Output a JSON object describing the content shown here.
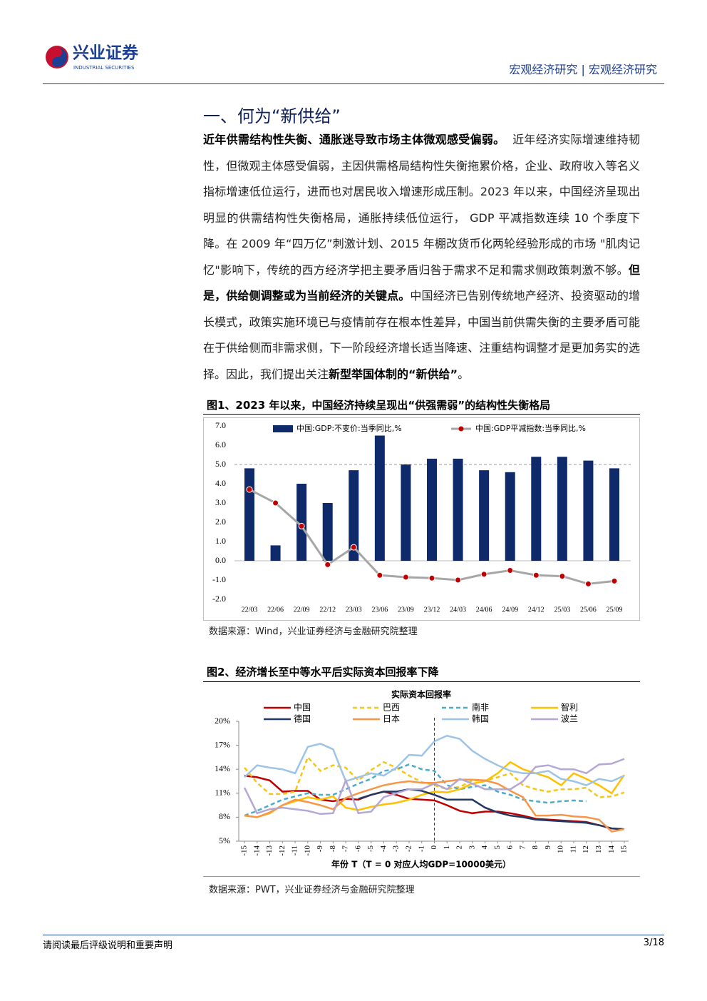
{
  "header": {
    "logo_name": "兴业证券",
    "logo_en": "INDUSTRIAL SECURITIES",
    "right": "宏观经济研究 | 宏观经济研究"
  },
  "heading": "一、何为“新供给”",
  "paragraph": {
    "runs": [
      {
        "text": "近年供需结构性失衡、通胀迷导致市场主体微观感受偏弱。",
        "bold": true
      },
      {
        "text": "  近年经济实际增速维持韧性，但微观主体感受偏弱，主因供需格局结构性失衡拖累价格，企业、政府收入等名义指标增速低位运行，进而也对居民收入增速形成压制。2023 年以来，中国经济呈现出明显的供需结构性失衡格局，通胀持续低位运行， GDP 平减指数连续 10 个季度下降。在 2009 年“四万亿”刺激计划、2015 年棚改货币化两轮经验形成的市场 \"肌肉记忆\"影响下，传统的西方经济学把主要矛盾归咎于需求不足和需求侧政策刺激不够。",
        "bold": false
      },
      {
        "text": "但是，供给侧调整或为当前经济的关键点。",
        "bold": true
      },
      {
        "text": "中国经济已告别传统地产经济、投资驱动的增长模式，政策实施环境已与疫情前存在根本性差异，中国当前供需失衡的主要矛盾可能在于供给侧而非需求侧，下一阶段经济增长适当降速、注重结构调整才是更加务实的选择。因此，我们提出关注",
        "bold": false
      },
      {
        "text": "新型举国体制的“新供给”",
        "bold": true
      },
      {
        "text": "。",
        "bold": false
      }
    ]
  },
  "chart_data": [
    {
      "type": "bar_line",
      "title": "图1、2023 年以来，中国经济持续呈现出“供强需弱”的结构性失衡格局",
      "categories": [
        "22/03",
        "22/06",
        "22/09",
        "22/12",
        "23/03",
        "23/06",
        "23/09",
        "23/12",
        "24/03",
        "24/06",
        "24/09",
        "24/12",
        "25/03",
        "25/06",
        "25/09"
      ],
      "series": [
        {
          "name": "中国:GDP:不变价:当季同比,%",
          "type": "bar",
          "color": "#0e2a6b",
          "values": [
            4.8,
            0.8,
            4.0,
            3.0,
            4.7,
            6.5,
            5.0,
            5.3,
            5.3,
            4.7,
            4.6,
            5.4,
            5.4,
            5.2,
            4.8
          ]
        },
        {
          "name": "中国:GDP平减指数:当季同比,%",
          "type": "line",
          "color": "#a6a6a6",
          "marker_color": "#c00000",
          "values": [
            3.7,
            3.0,
            1.8,
            -0.2,
            0.7,
            -0.75,
            -0.85,
            -0.9,
            -1.0,
            -0.7,
            -0.5,
            -0.75,
            -0.8,
            -1.2,
            -1.05
          ]
        }
      ],
      "ylim": [
        -2,
        7
      ],
      "yticks": [
        {
          "value": -2,
          "label": "-2.0"
        },
        {
          "value": -1,
          "label": "-1.0"
        },
        {
          "value": 0,
          "label": "0.0"
        },
        {
          "value": 1,
          "label": "1.0"
        },
        {
          "value": 2,
          "label": "2.0"
        },
        {
          "value": 3,
          "label": "3.0"
        },
        {
          "value": 4,
          "label": "4.0"
        },
        {
          "value": 5,
          "label": "5.0"
        },
        {
          "value": 6,
          "label": "6.0"
        },
        {
          "value": 7,
          "label": "7.0"
        }
      ],
      "reference_line": 5,
      "source": "数据来源：Wind，兴业证券经济与金融研究院整理"
    },
    {
      "type": "line",
      "title": "图2、经济增长至中等水平后实际资本回报率下降",
      "subtitle": "实际资本回报率",
      "x_label": "年份 T（T = 0 对应人均GDP=10000美元）",
      "x": [
        -15,
        -14,
        -13,
        -12,
        -11,
        -10,
        -9,
        -8,
        -7,
        -6,
        -5,
        -4,
        -3,
        -2,
        -1,
        0,
        1,
        2,
        3,
        4,
        5,
        6,
        7,
        8,
        9,
        10,
        11,
        12,
        13,
        14,
        15
      ],
      "series": [
        {
          "name": "中国",
          "color": "#c00000",
          "dash": false,
          "values": [
            13.2,
            13.0,
            12.6,
            11.2,
            11.3,
            11.3,
            10.2,
            10.0,
            10.3,
            10.2,
            10.8,
            11.2,
            10.8,
            10.3,
            10.2,
            10.1,
            9.5,
            8.8,
            8.5,
            8.7,
            8.7,
            8.5,
            8.2,
            7.8,
            7.7,
            7.6,
            7.5,
            7.4,
            7.0,
            6.6,
            6.5
          ]
        },
        {
          "name": "巴西",
          "color": "#f5c518",
          "dash": true,
          "values": [
            14.2,
            12.3,
            10.9,
            10.9,
            11.2,
            15.5,
            13.8,
            14.5,
            14.2,
            12.6,
            13.9,
            14.9,
            14.2,
            13.2,
            12.4,
            12.0,
            11.5,
            11.8,
            12.6,
            12.6,
            13.0,
            13.5,
            12.0,
            11.5,
            11.2,
            11.5,
            11.5,
            11.7,
            10.5,
            10.6,
            11.1
          ]
        },
        {
          "name": "南非",
          "color": "#4bacc6",
          "dash": true,
          "values": [
            8.2,
            8.8,
            9.5,
            10.2,
            10.6,
            11.0,
            10.8,
            10.8,
            11.5,
            12.2,
            12.8,
            13.8,
            14.0,
            14.6,
            14.0,
            13.8,
            12.0,
            11.5,
            11.8,
            12.0,
            11.2,
            10.8,
            10.2,
            10.0,
            9.8,
            10.0,
            10.1,
            10.0,
            null,
            null,
            null
          ]
        },
        {
          "name": "智利",
          "color": "#ffc000",
          "dash": false,
          "values": [
            8.2,
            8.0,
            8.5,
            9.5,
            10.0,
            10.5,
            10.2,
            10.6,
            9.2,
            8.9,
            9.3,
            9.6,
            9.8,
            10.2,
            10.8,
            11.2,
            11.1,
            11.5,
            12.2,
            12.5,
            13.5,
            14.9,
            14.0,
            13.5,
            13.0,
            12.0,
            13.5,
            12.8,
            12.0,
            11.0,
            13.3
          ]
        },
        {
          "name": "德国",
          "color": "#1f3864",
          "dash": false,
          "values": [
            null,
            null,
            null,
            null,
            null,
            null,
            null,
            null,
            null,
            10.3,
            10.8,
            11.2,
            11.2,
            11.5,
            11.3,
            10.8,
            10.2,
            10.2,
            10.2,
            9.2,
            8.6,
            8.2,
            8.0,
            7.7,
            7.6,
            7.5,
            7.4,
            7.3,
            7.0,
            6.6,
            6.5
          ]
        },
        {
          "name": "日本",
          "color": "#f79646",
          "dash": false,
          "values": [
            8.2,
            8.0,
            8.6,
            9.5,
            10.2,
            9.9,
            9.5,
            9.0,
            10.4,
            11.0,
            11.5,
            12.0,
            12.3,
            12.5,
            12.3,
            12.3,
            12.5,
            12.7,
            12.7,
            12.6,
            12.2,
            11.3,
            10.5,
            8.2,
            8.2,
            8.3,
            8.1,
            8.0,
            7.7,
            6.2,
            6.5
          ]
        },
        {
          "name": "韩国",
          "color": "#9dc3e6",
          "dash": false,
          "values": [
            13.0,
            14.5,
            14.2,
            14.0,
            13.5,
            16.8,
            17.2,
            16.5,
            12.5,
            13.0,
            13.5,
            13.2,
            14.2,
            15.8,
            15.7,
            17.5,
            18.2,
            17.8,
            16.3,
            15.3,
            14.5,
            13.8,
            13.5,
            13.5,
            13.8,
            12.8,
            12.5,
            12.0,
            12.8,
            12.5,
            13.2
          ]
        },
        {
          "name": "波兰",
          "color": "#b4a7d6",
          "dash": false,
          "values": [
            11.7,
            8.5,
            9.0,
            9.2,
            9.0,
            8.8,
            8.4,
            8.5,
            12.6,
            8.5,
            8.7,
            10.5,
            11.0,
            11.5,
            11.5,
            12.2,
            11.5,
            12.8,
            12.2,
            11.5,
            11.5,
            11.5,
            12.5,
            14.3,
            14.5,
            14.0,
            14.0,
            13.5,
            14.6,
            14.7,
            15.3
          ]
        }
      ],
      "xlim": [
        -15,
        15
      ],
      "xticks": [
        -15,
        -14,
        -13,
        -12,
        -11,
        -10,
        -9,
        -8,
        -7,
        -6,
        -5,
        -4,
        -3,
        -2,
        -1,
        0,
        1,
        2,
        3,
        4,
        5,
        6,
        7,
        8,
        9,
        10,
        11,
        12,
        13,
        14,
        15
      ],
      "ylim": [
        5,
        20
      ],
      "yticks": [
        {
          "value": 5,
          "label": "5%"
        },
        {
          "value": 8,
          "label": "8%"
        },
        {
          "value": 11,
          "label": "11%"
        },
        {
          "value": 14,
          "label": "14%"
        },
        {
          "value": 17,
          "label": "17%"
        },
        {
          "value": 20,
          "label": "20%"
        }
      ],
      "reference_x": 0,
      "source": "数据来源：PWT，兴业证券经济与金融研究院整理"
    }
  ],
  "footer": {
    "left": "请阅读最后评级说明和重要声明",
    "page": "3/18"
  }
}
